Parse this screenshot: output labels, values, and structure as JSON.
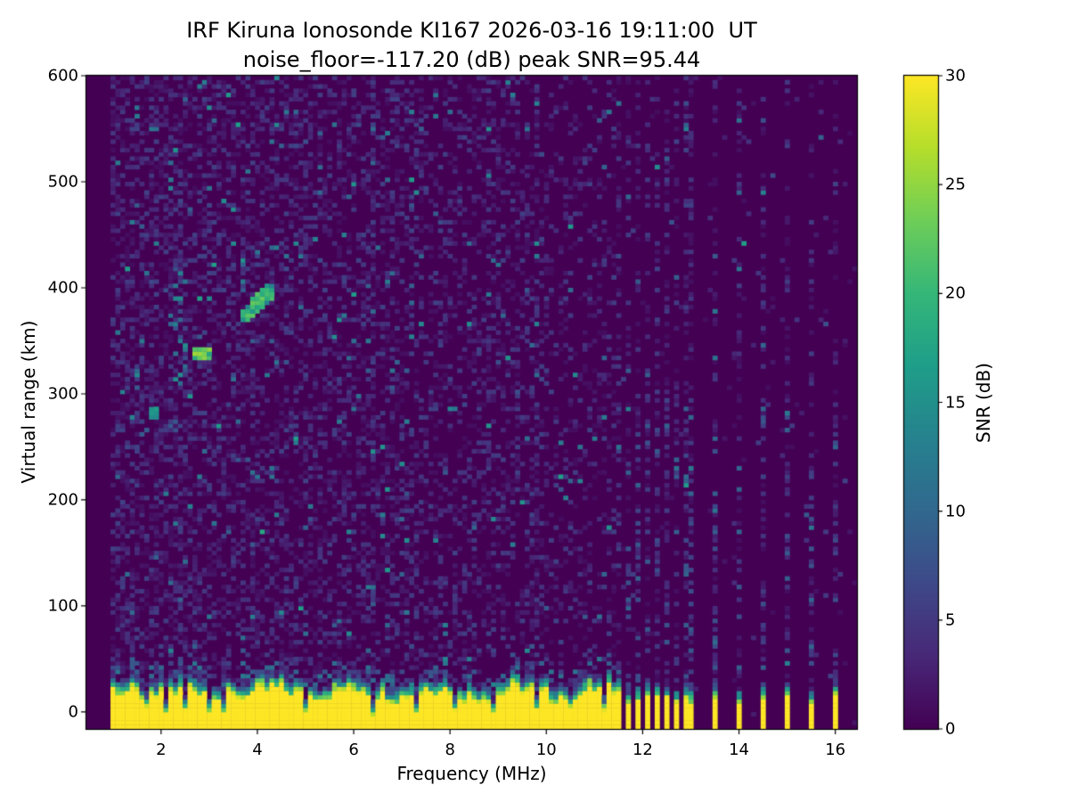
{
  "chart_data": {
    "type": "heatmap",
    "title": "IRF Kiruna Ionosonde KI167 2026-03-16 19:11:00  UT",
    "subtitle": "noise_floor=-117.20 (dB) peak SNR=95.44",
    "station_id": "KI167",
    "observatory": "IRF Kiruna Ionosonde",
    "datetime_ut": "2026-03-16 19:11:00",
    "noise_floor_db": -117.2,
    "peak_snr_db": 95.44,
    "xlabel": "Frequency (MHz)",
    "ylabel": "Virtual range (km)",
    "colorbar_label": "SNR (dB)",
    "xlim": [
      0.45,
      16.45
    ],
    "ylim": [
      -16,
      600
    ],
    "clim": [
      0,
      30
    ],
    "x_ticks": [
      2,
      4,
      6,
      8,
      10,
      12,
      14,
      16
    ],
    "y_ticks": [
      0,
      100,
      200,
      300,
      400,
      500,
      600
    ],
    "colorbar_ticks": [
      0,
      5,
      10,
      15,
      20,
      25,
      30
    ],
    "colormap": "viridis",
    "colormap_stops": [
      [
        0.0,
        "#440154"
      ],
      [
        0.111,
        "#482878"
      ],
      [
        0.222,
        "#3e4989"
      ],
      [
        0.333,
        "#31688e"
      ],
      [
        0.444,
        "#26828e"
      ],
      [
        0.556,
        "#1f9e89"
      ],
      [
        0.667,
        "#35b779"
      ],
      [
        0.778,
        "#6ece58"
      ],
      [
        0.889,
        "#b5de2b"
      ],
      [
        1.0,
        "#fde725"
      ]
    ],
    "freq_bin_mhz": 0.1,
    "range_bin_km": 4,
    "data_start_mhz": 0.95,
    "ground_band": {
      "freq_range": [
        0.95,
        11.57
      ],
      "saturated_top_km": [
        19,
        36
      ],
      "fringe_km": 16,
      "snr_saturated": 30
    },
    "band_notches_mhz": [
      1.7,
      2.13,
      2.45,
      2.95,
      3.28,
      4.95,
      6.39,
      7.35,
      8.09,
      8.92,
      9.75,
      10.49,
      11.23
    ],
    "stripe_cluster_mhz": [
      11.7,
      11.9,
      12.1,
      12.3,
      12.5,
      12.7,
      12.85,
      13.0
    ],
    "isolated_stripes_mhz": [
      13.45,
      13.95,
      14.45,
      14.95,
      15.45,
      15.95
    ],
    "rfi_columns_mhz": [
      6.4,
      9.75
    ],
    "echo_features": [
      {
        "name": "F-region-trace",
        "points": [
          [
            3.75,
            374
          ],
          [
            3.85,
            379
          ],
          [
            3.95,
            384
          ],
          [
            4.05,
            388
          ],
          [
            4.15,
            392
          ],
          [
            4.25,
            396
          ]
        ],
        "snr": [
          13,
          23
        ]
      },
      {
        "name": "E-region-echo",
        "points": [
          [
            2.75,
            337
          ],
          [
            2.85,
            337
          ],
          [
            2.95,
            338
          ]
        ],
        "snr": [
          17,
          26
        ]
      },
      {
        "name": "spread-scatter-column",
        "freq_range": [
          2.25,
          2.55
        ],
        "range_km": [
          303,
          430
        ],
        "density": 0.3,
        "snr": [
          3,
          15
        ]
      },
      {
        "name": "isolated-echo-dot",
        "points": [
          [
            1.85,
            282
          ]
        ],
        "snr": [
          14,
          17
        ]
      }
    ],
    "noise": {
      "seed": 167,
      "background_snr_range": [
        0,
        8
      ],
      "density_by_freq": [
        [
          2.5,
          0.45
        ],
        [
          5.0,
          0.4
        ],
        [
          7.5,
          0.36
        ],
        [
          10.0,
          0.3
        ],
        [
          11.57,
          0.22
        ],
        [
          16.45,
          0.02
        ]
      ],
      "stripe_column_density": 0.32,
      "rfi_column_boost": 0.22
    },
    "legend_position": "right-colorbar",
    "grid": false
  }
}
